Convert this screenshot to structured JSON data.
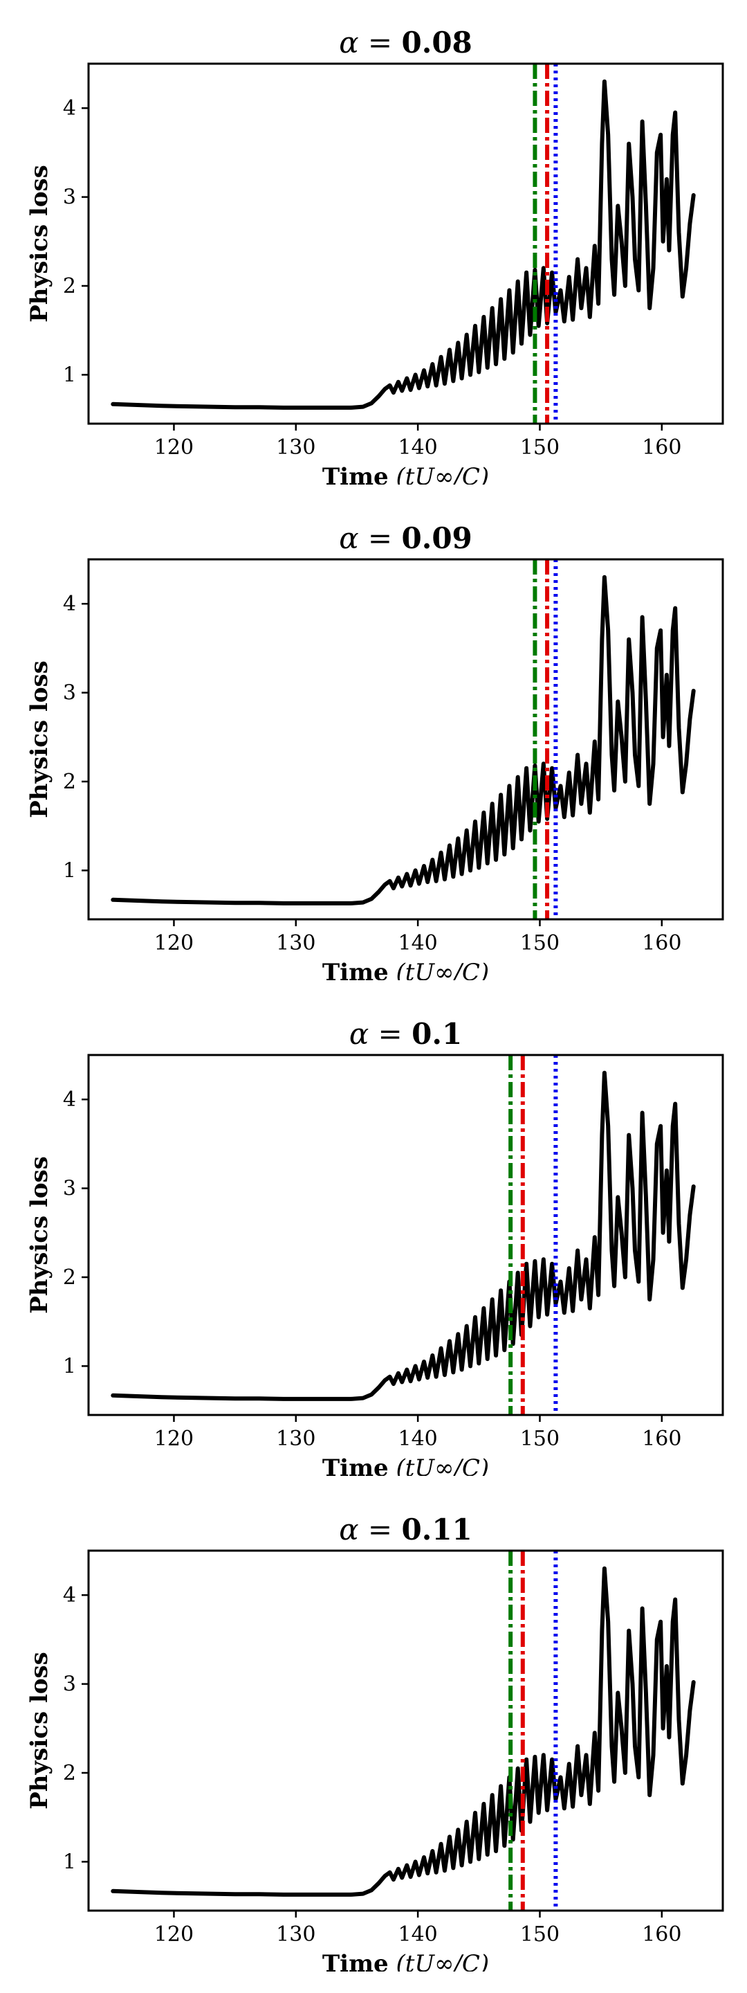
{
  "chart_data": [
    {
      "type": "line",
      "title_symbol": "α",
      "title_eq": " = ",
      "title_value": "0.08",
      "xlabel_bold": "Time",
      "xlabel_math": "(tU∞/C)",
      "ylabel": "Physics loss",
      "xlim": [
        113,
        165
      ],
      "ylim": [
        0.45,
        4.5
      ],
      "xticks": [
        120,
        130,
        140,
        150,
        160
      ],
      "yticks": [
        1,
        2,
        3,
        4
      ],
      "vlines": [
        {
          "x": 149.6,
          "color": "#007a00",
          "style": "dashdot"
        },
        {
          "x": 150.6,
          "color": "#e00000",
          "style": "dashdot"
        },
        {
          "x": 151.3,
          "color": "#0000ee",
          "style": "dotted"
        }
      ]
    },
    {
      "type": "line",
      "title_symbol": "α",
      "title_eq": " = ",
      "title_value": "0.09",
      "xlabel_bold": "Time",
      "xlabel_math": "(tU∞/C)",
      "ylabel": "Physics loss",
      "xlim": [
        113,
        165
      ],
      "ylim": [
        0.45,
        4.5
      ],
      "xticks": [
        120,
        130,
        140,
        150,
        160
      ],
      "yticks": [
        1,
        2,
        3,
        4
      ],
      "vlines": [
        {
          "x": 149.6,
          "color": "#007a00",
          "style": "dashdot"
        },
        {
          "x": 150.6,
          "color": "#e00000",
          "style": "dashdot"
        },
        {
          "x": 151.3,
          "color": "#0000ee",
          "style": "dotted"
        }
      ]
    },
    {
      "type": "line",
      "title_symbol": "α",
      "title_eq": " = ",
      "title_value": "0.1",
      "xlabel_bold": "Time",
      "xlabel_math": "(tU∞/C)",
      "ylabel": "Physics loss",
      "xlim": [
        113,
        165
      ],
      "ylim": [
        0.45,
        4.5
      ],
      "xticks": [
        120,
        130,
        140,
        150,
        160
      ],
      "yticks": [
        1,
        2,
        3,
        4
      ],
      "vlines": [
        {
          "x": 147.6,
          "color": "#007a00",
          "style": "dashdot"
        },
        {
          "x": 148.6,
          "color": "#e00000",
          "style": "dashdot"
        },
        {
          "x": 151.3,
          "color": "#0000ee",
          "style": "dotted"
        }
      ]
    },
    {
      "type": "line",
      "title_symbol": "α",
      "title_eq": " = ",
      "title_value": "0.11",
      "xlabel_bold": "Time",
      "xlabel_math": "(tU∞/C)",
      "ylabel": "Physics loss",
      "xlim": [
        113,
        165
      ],
      "ylim": [
        0.45,
        4.5
      ],
      "xticks": [
        120,
        130,
        140,
        150,
        160
      ],
      "yticks": [
        1,
        2,
        3,
        4
      ],
      "vlines": [
        {
          "x": 147.6,
          "color": "#007a00",
          "style": "dashdot"
        },
        {
          "x": 148.6,
          "color": "#e00000",
          "style": "dashdot"
        },
        {
          "x": 151.3,
          "color": "#0000ee",
          "style": "dotted"
        }
      ]
    }
  ],
  "series": {
    "name": "Physics loss",
    "color": "#000000",
    "points": [
      [
        115.0,
        0.67
      ],
      [
        117.0,
        0.66
      ],
      [
        119.0,
        0.65
      ],
      [
        121.0,
        0.645
      ],
      [
        123.0,
        0.64
      ],
      [
        125.0,
        0.635
      ],
      [
        127.0,
        0.635
      ],
      [
        129.0,
        0.63
      ],
      [
        131.0,
        0.63
      ],
      [
        133.0,
        0.63
      ],
      [
        134.5,
        0.63
      ],
      [
        135.5,
        0.64
      ],
      [
        136.2,
        0.68
      ],
      [
        136.8,
        0.76
      ],
      [
        137.3,
        0.84
      ],
      [
        137.7,
        0.88
      ],
      [
        138.0,
        0.8
      ],
      [
        138.4,
        0.92
      ],
      [
        138.7,
        0.82
      ],
      [
        139.1,
        0.96
      ],
      [
        139.4,
        0.83
      ],
      [
        139.8,
        1.0
      ],
      [
        140.1,
        0.85
      ],
      [
        140.5,
        1.05
      ],
      [
        140.8,
        0.87
      ],
      [
        141.2,
        1.12
      ],
      [
        141.5,
        0.88
      ],
      [
        141.9,
        1.2
      ],
      [
        142.2,
        0.9
      ],
      [
        142.6,
        1.28
      ],
      [
        142.9,
        0.93
      ],
      [
        143.3,
        1.36
      ],
      [
        143.6,
        0.96
      ],
      [
        144.0,
        1.45
      ],
      [
        144.3,
        1.0
      ],
      [
        144.7,
        1.55
      ],
      [
        145.0,
        1.03
      ],
      [
        145.4,
        1.65
      ],
      [
        145.7,
        1.08
      ],
      [
        146.1,
        1.75
      ],
      [
        146.4,
        1.12
      ],
      [
        146.8,
        1.85
      ],
      [
        147.1,
        1.18
      ],
      [
        147.5,
        1.95
      ],
      [
        147.8,
        1.25
      ],
      [
        148.2,
        2.05
      ],
      [
        148.5,
        1.35
      ],
      [
        148.9,
        2.15
      ],
      [
        149.2,
        1.45
      ],
      [
        149.6,
        2.18
      ],
      [
        149.9,
        1.55
      ],
      [
        150.3,
        2.2
      ],
      [
        150.6,
        1.58
      ],
      [
        151.0,
        2.15
      ],
      [
        151.3,
        1.7
      ],
      [
        151.7,
        1.95
      ],
      [
        152.0,
        1.6
      ],
      [
        152.4,
        2.1
      ],
      [
        152.7,
        1.62
      ],
      [
        153.1,
        2.3
      ],
      [
        153.4,
        1.75
      ],
      [
        153.8,
        2.2
      ],
      [
        154.1,
        1.65
      ],
      [
        154.5,
        2.45
      ],
      [
        154.8,
        1.8
      ],
      [
        155.1,
        3.6
      ],
      [
        155.3,
        4.3
      ],
      [
        155.6,
        3.7
      ],
      [
        155.9,
        2.3
      ],
      [
        156.1,
        1.9
      ],
      [
        156.4,
        2.9
      ],
      [
        156.7,
        2.5
      ],
      [
        157.0,
        2.0
      ],
      [
        157.3,
        3.6
      ],
      [
        157.6,
        3.0
      ],
      [
        157.8,
        2.3
      ],
      [
        158.1,
        1.95
      ],
      [
        158.4,
        3.85
      ],
      [
        158.7,
        2.9
      ],
      [
        159.0,
        1.75
      ],
      [
        159.3,
        2.2
      ],
      [
        159.6,
        3.5
      ],
      [
        159.9,
        3.7
      ],
      [
        160.1,
        2.5
      ],
      [
        160.4,
        3.2
      ],
      [
        160.6,
        2.4
      ],
      [
        160.9,
        3.7
      ],
      [
        161.1,
        3.95
      ],
      [
        161.4,
        2.6
      ],
      [
        161.7,
        1.88
      ],
      [
        162.0,
        2.2
      ],
      [
        162.3,
        2.7
      ],
      [
        162.6,
        3.02
      ]
    ]
  }
}
